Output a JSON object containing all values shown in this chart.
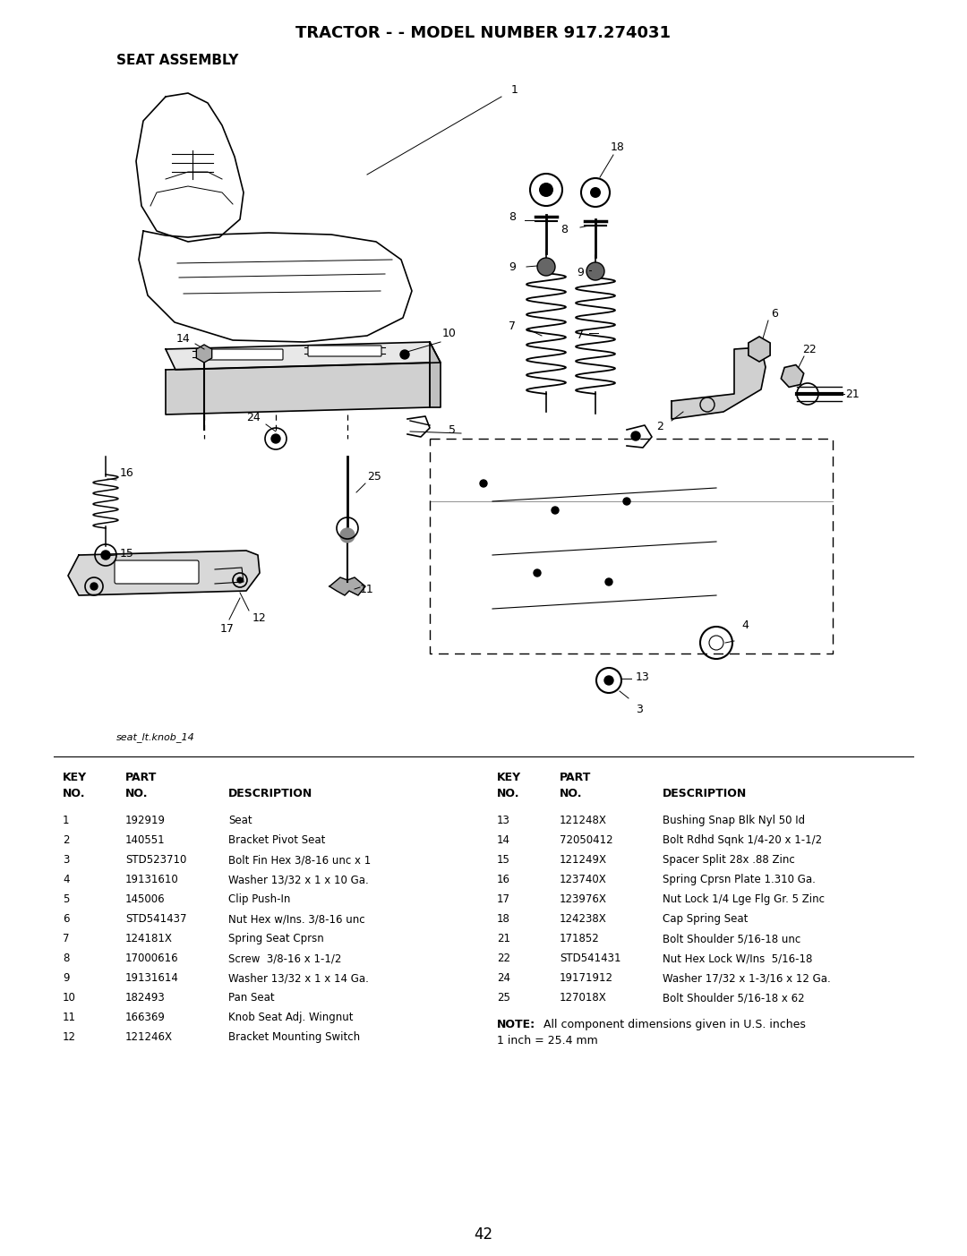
{
  "title": "TRACTOR - - MODEL NUMBER 917.274031",
  "subtitle": "SEAT ASSEMBLY",
  "image_label": "seat_lt.knob_14",
  "page_number": "42",
  "bg_color": "#ffffff",
  "text_color": "#000000",
  "left_parts": [
    [
      "1",
      "192919",
      "Seat"
    ],
    [
      "2",
      "140551",
      "Bracket Pivot Seat"
    ],
    [
      "3",
      "STD523710",
      "Bolt Fin Hex 3/8-16 unc x 1"
    ],
    [
      "4",
      "19131610",
      "Washer 13/32 x 1 x 10 Ga."
    ],
    [
      "5",
      "145006",
      "Clip Push-In"
    ],
    [
      "6",
      "STD541437",
      "Nut Hex w/Ins. 3/8-16 unc"
    ],
    [
      "7",
      "124181X",
      "Spring Seat Cprsn"
    ],
    [
      "8",
      "17000616",
      "Screw  3/8-16 x 1-1/2"
    ],
    [
      "9",
      "19131614",
      "Washer 13/32 x 1 x 14 Ga."
    ],
    [
      "10",
      "182493",
      "Pan Seat"
    ],
    [
      "11",
      "166369",
      "Knob Seat Adj. Wingnut"
    ],
    [
      "12",
      "121246X",
      "Bracket Mounting Switch"
    ]
  ],
  "right_parts": [
    [
      "13",
      "121248X",
      "Bushing Snap Blk Nyl 50 Id"
    ],
    [
      "14",
      "72050412",
      "Bolt Rdhd Sqnk 1/4-20 x 1-1/2"
    ],
    [
      "15",
      "121249X",
      "Spacer Split 28x .88 Zinc"
    ],
    [
      "16",
      "123740X",
      "Spring Cprsn Plate 1.310 Ga."
    ],
    [
      "17",
      "123976X",
      "Nut Lock 1/4 Lge Flg Gr. 5 Zinc"
    ],
    [
      "18",
      "124238X",
      "Cap Spring Seat"
    ],
    [
      "21",
      "171852",
      "Bolt Shoulder 5/16-18 unc"
    ],
    [
      "22",
      "STD541431",
      "Nut Hex Lock W/Ins  5/16-18"
    ],
    [
      "24",
      "19171912",
      "Washer 17/32 x 1-3/16 x 12 Ga."
    ],
    [
      "25",
      "127018X",
      "Bolt Shoulder 5/16-18 x 62"
    ]
  ]
}
